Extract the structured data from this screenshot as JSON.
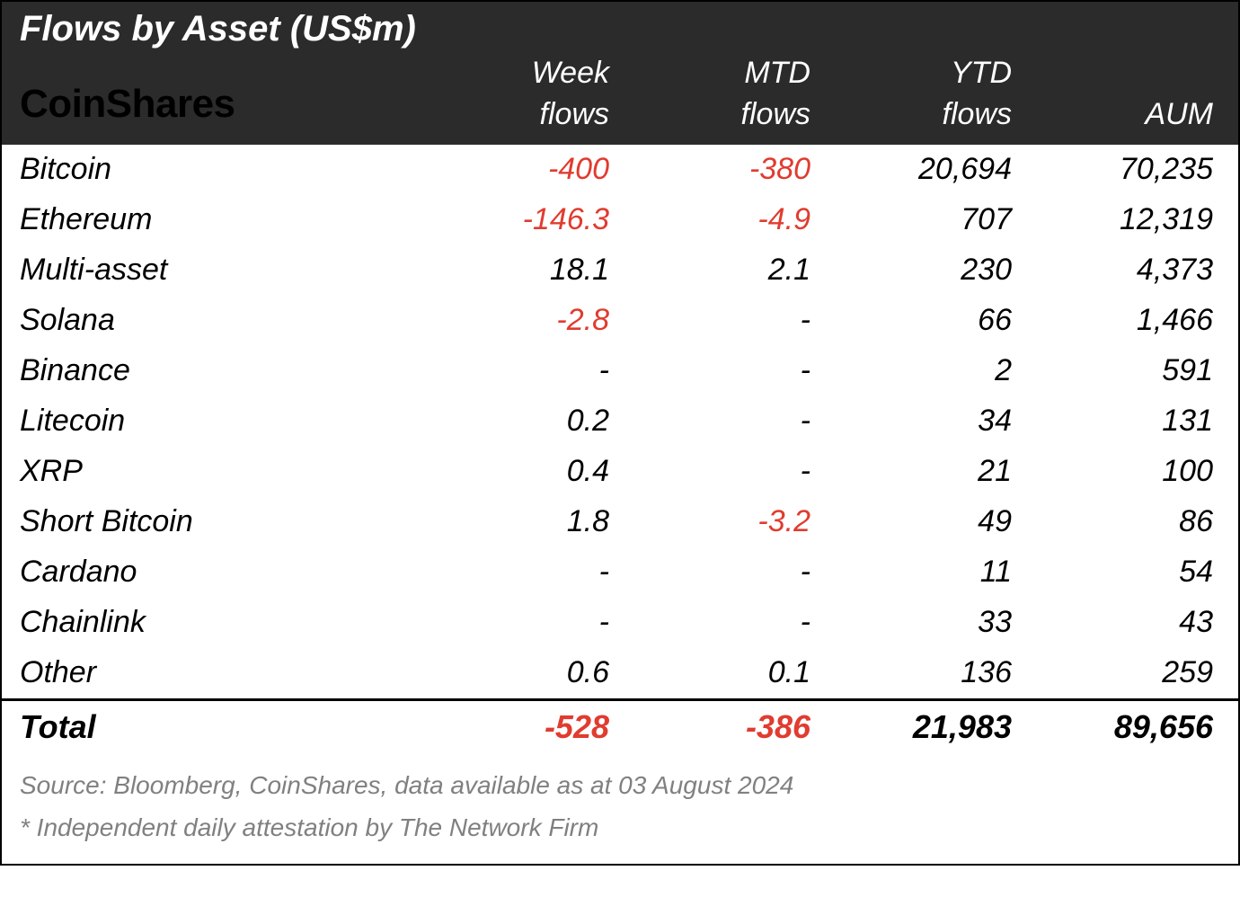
{
  "table": {
    "title": "Flows by Asset (US$m)",
    "logo_text": "CoinShares",
    "columns": {
      "week_line1": "Week",
      "week_line2": "flows",
      "mtd_line1": "MTD",
      "mtd_line2": "flows",
      "ytd_line1": "YTD",
      "ytd_line2": "flows",
      "aum": "AUM"
    },
    "rows": [
      {
        "name": "Bitcoin",
        "week": "-400",
        "week_neg": true,
        "mtd": "-380",
        "mtd_neg": true,
        "ytd": "20,694",
        "aum": "70,235"
      },
      {
        "name": "Ethereum",
        "week": "-146.3",
        "week_neg": true,
        "mtd": "-4.9",
        "mtd_neg": true,
        "ytd": "707",
        "aum": "12,319"
      },
      {
        "name": "Multi-asset",
        "week": "18.1",
        "week_neg": false,
        "mtd": "2.1",
        "mtd_neg": false,
        "ytd": "230",
        "aum": "4,373"
      },
      {
        "name": "Solana",
        "week": "-2.8",
        "week_neg": true,
        "mtd": "-",
        "mtd_neg": false,
        "ytd": "66",
        "aum": "1,466"
      },
      {
        "name": "Binance",
        "week": "-",
        "week_neg": false,
        "mtd": "-",
        "mtd_neg": false,
        "ytd": "2",
        "aum": "591"
      },
      {
        "name": "Litecoin",
        "week": "0.2",
        "week_neg": false,
        "mtd": "-",
        "mtd_neg": false,
        "ytd": "34",
        "aum": "131"
      },
      {
        "name": "XRP",
        "week": "0.4",
        "week_neg": false,
        "mtd": "-",
        "mtd_neg": false,
        "ytd": "21",
        "aum": "100"
      },
      {
        "name": "Short Bitcoin",
        "week": "1.8",
        "week_neg": false,
        "mtd": "-3.2",
        "mtd_neg": true,
        "ytd": "49",
        "aum": "86"
      },
      {
        "name": "Cardano",
        "week": "-",
        "week_neg": false,
        "mtd": "-",
        "mtd_neg": false,
        "ytd": "11",
        "aum": "54"
      },
      {
        "name": "Chainlink",
        "week": "-",
        "week_neg": false,
        "mtd": "-",
        "mtd_neg": false,
        "ytd": "33",
        "aum": "43"
      },
      {
        "name": "Other",
        "week": "0.6",
        "week_neg": false,
        "mtd": "0.1",
        "mtd_neg": false,
        "ytd": "136",
        "aum": "259"
      }
    ],
    "total": {
      "label": "Total",
      "week": "-528",
      "week_neg": true,
      "mtd": "-386",
      "mtd_neg": true,
      "ytd": "21,983",
      "aum": "89,656"
    },
    "footer": {
      "source": "Source: Bloomberg, CoinShares, data available as at 03 August 2024",
      "attestation": "* Independent daily attestation by The Network Firm"
    },
    "styling": {
      "header_bg": "#2b2b2b",
      "header_text": "#ffffff",
      "negative_color": "#e03c2f",
      "body_text": "#000000",
      "footer_text": "#808080",
      "border_color": "#000000",
      "font_family": "Arial",
      "title_fontsize": 40,
      "header_fontsize": 34,
      "body_fontsize": 34,
      "total_fontsize": 36,
      "footer_fontsize": 28,
      "col_widths": {
        "first": 440,
        "rest": "flex"
      }
    }
  }
}
